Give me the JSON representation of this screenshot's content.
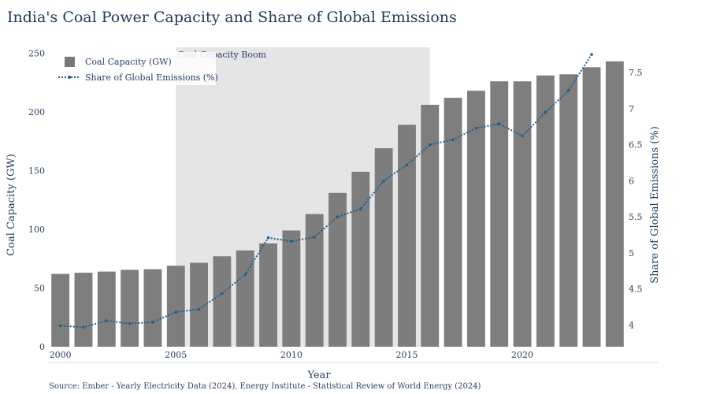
{
  "chart_data": {
    "type": "bar",
    "title": "India's Coal Power Capacity and Share of Global Emissions",
    "xlabel": "Year",
    "ylabel": "Coal Capacity (GW)",
    "y2label": "Share of Global Emissions (%)",
    "xlim": [
      1999.5,
      2024.5
    ],
    "ylim": [
      0,
      255
    ],
    "y2lim": [
      3.7,
      7.85
    ],
    "x_ticks": [
      2000,
      2005,
      2010,
      2015,
      2020
    ],
    "y_ticks": [
      0,
      50,
      100,
      150,
      200,
      250
    ],
    "y2_ticks": [
      4,
      4.5,
      5,
      5.5,
      6,
      6.5,
      7,
      7.5
    ],
    "x": [
      2000,
      2001,
      2002,
      2003,
      2004,
      2005,
      2006,
      2007,
      2008,
      2009,
      2010,
      2011,
      2012,
      2013,
      2014,
      2015,
      2016,
      2017,
      2018,
      2019,
      2020,
      2021,
      2022,
      2023,
      2024
    ],
    "series": [
      {
        "name": "Coal Capacity (GW)",
        "type": "bar",
        "axis": "left",
        "color": "#777777",
        "values": [
          62,
          63,
          64,
          65.5,
          66,
          69,
          71.5,
          77,
          82,
          88,
          99,
          113,
          131,
          149,
          169,
          189,
          206,
          212,
          218,
          226,
          226,
          231,
          232,
          238,
          243
        ]
      },
      {
        "name": "Share of Global Emissions (%)",
        "type": "line",
        "axis": "right",
        "style": "dotted",
        "color": "#1f5f8b",
        "x": [
          2000,
          2001,
          2002,
          2003,
          2004,
          2005,
          2006,
          2007,
          2008,
          2009,
          2010,
          2011,
          2012,
          2013,
          2014,
          2015,
          2016,
          2017,
          2018,
          2019,
          2020,
          2021,
          2022,
          2023
        ],
        "values": [
          3.99,
          3.97,
          4.06,
          4.02,
          4.04,
          4.18,
          4.22,
          4.44,
          4.7,
          5.21,
          5.16,
          5.22,
          5.5,
          5.61,
          6.0,
          6.22,
          6.5,
          6.57,
          6.73,
          6.79,
          6.62,
          6.95,
          7.25,
          7.75
        ]
      }
    ],
    "annotation": {
      "label": "Coal Capacity Boom",
      "x_start": 2005,
      "x_end": 2016,
      "color": "#e5e5e5"
    },
    "legend_position": "top-left",
    "grid": false,
    "source": "Source: Ember - Yearly Electricity Data (2024), Energy Institute - Statistical Review of World Energy (2024)"
  }
}
